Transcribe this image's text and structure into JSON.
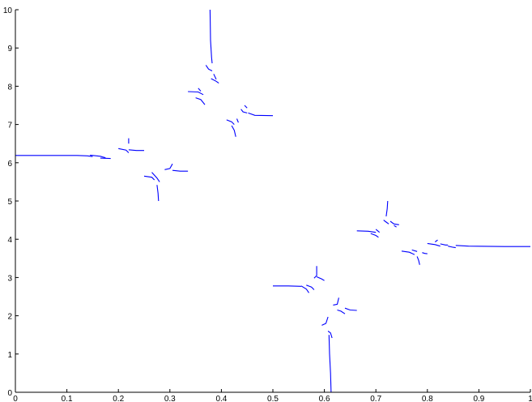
{
  "chart_data": {
    "type": "line",
    "title": "",
    "xlabel": "",
    "ylabel": "",
    "xlim": [
      0,
      1
    ],
    "ylim": [
      0,
      10
    ],
    "grid": false,
    "legend": "none",
    "series_color": "#0000ff",
    "x_ticks": [
      "0",
      "0.1",
      "0.2",
      "0.3",
      "0.4",
      "0.5",
      "0.6",
      "0.7",
      "0.8",
      "0.9",
      "1"
    ],
    "x_tick_values": [
      0,
      0.1,
      0.2,
      0.3,
      0.4,
      0.5,
      0.6,
      0.7,
      0.8,
      0.9,
      1
    ],
    "y_ticks": [
      "0",
      "1",
      "2",
      "3",
      "4",
      "5",
      "6",
      "7",
      "8",
      "9",
      "10"
    ],
    "y_tick_values": [
      0,
      1,
      2,
      3,
      4,
      5,
      6,
      7,
      8,
      9,
      10
    ],
    "series": [
      {
        "points": [
          [
            0.0,
            6.19
          ],
          [
            0.06,
            6.19
          ],
          [
            0.12,
            6.19
          ],
          [
            0.14,
            6.18
          ],
          [
            0.15,
            6.16
          ]
        ]
      },
      {
        "points": [
          [
            0.145,
            6.2
          ],
          [
            0.165,
            6.17
          ],
          [
            0.175,
            6.13
          ]
        ]
      },
      {
        "points": [
          [
            0.165,
            6.12
          ],
          [
            0.185,
            6.11
          ]
        ]
      },
      {
        "points": [
          [
            0.2,
            6.37
          ],
          [
            0.215,
            6.33
          ],
          [
            0.22,
            6.26
          ]
        ]
      },
      {
        "points": [
          [
            0.22,
            6.34
          ],
          [
            0.235,
            6.32
          ],
          [
            0.25,
            6.32
          ]
        ]
      },
      {
        "points": [
          [
            0.22,
            6.5
          ],
          [
            0.22,
            6.64
          ]
        ]
      },
      {
        "points": [
          [
            0.25,
            5.65
          ],
          [
            0.265,
            5.62
          ],
          [
            0.27,
            5.55
          ]
        ]
      },
      {
        "points": [
          [
            0.265,
            5.75
          ],
          [
            0.275,
            5.6
          ],
          [
            0.28,
            5.5
          ]
        ]
      },
      {
        "points": [
          [
            0.275,
            5.42
          ],
          [
            0.277,
            5.2
          ],
          [
            0.278,
            5.0
          ]
        ]
      },
      {
        "points": [
          [
            0.29,
            5.82
          ],
          [
            0.3,
            5.85
          ],
          [
            0.305,
            5.97
          ]
        ]
      },
      {
        "points": [
          [
            0.305,
            5.8
          ],
          [
            0.32,
            5.78
          ],
          [
            0.335,
            5.78
          ]
        ]
      },
      {
        "points": [
          [
            0.335,
            7.86
          ],
          [
            0.355,
            7.85
          ],
          [
            0.365,
            7.78
          ]
        ]
      },
      {
        "points": [
          [
            0.35,
            7.7
          ],
          [
            0.36,
            7.65
          ],
          [
            0.368,
            7.52
          ]
        ]
      },
      {
        "points": [
          [
            0.355,
            7.95
          ],
          [
            0.36,
            7.87
          ]
        ]
      },
      {
        "points": [
          [
            0.37,
            8.55
          ],
          [
            0.375,
            8.45
          ],
          [
            0.382,
            8.4
          ]
        ]
      },
      {
        "points": [
          [
            0.378,
            10.0
          ],
          [
            0.379,
            9.2
          ],
          [
            0.381,
            8.75
          ],
          [
            0.382,
            8.6
          ]
        ]
      },
      {
        "points": [
          [
            0.38,
            8.2
          ],
          [
            0.39,
            8.13
          ],
          [
            0.395,
            8.08
          ]
        ]
      },
      {
        "points": [
          [
            0.385,
            8.32
          ],
          [
            0.39,
            8.18
          ]
        ]
      },
      {
        "points": [
          [
            0.41,
            7.12
          ],
          [
            0.42,
            7.07
          ],
          [
            0.425,
            7.0
          ]
        ]
      },
      {
        "points": [
          [
            0.42,
            6.97
          ],
          [
            0.425,
            6.85
          ],
          [
            0.428,
            6.68
          ]
        ]
      },
      {
        "points": [
          [
            0.43,
            7.15
          ],
          [
            0.433,
            7.05
          ]
        ]
      },
      {
        "points": [
          [
            0.438,
            7.4
          ],
          [
            0.442,
            7.33
          ],
          [
            0.45,
            7.3
          ]
        ]
      },
      {
        "points": [
          [
            0.445,
            7.5
          ],
          [
            0.45,
            7.43
          ]
        ]
      },
      {
        "points": [
          [
            0.452,
            7.3
          ],
          [
            0.465,
            7.24
          ],
          [
            0.5,
            7.23
          ]
        ]
      },
      {
        "points": [
          [
            0.5,
            2.78
          ],
          [
            0.53,
            2.78
          ],
          [
            0.555,
            2.77
          ]
        ]
      },
      {
        "points": [
          [
            0.555,
            2.78
          ],
          [
            0.565,
            2.7
          ],
          [
            0.57,
            2.6
          ]
        ]
      },
      {
        "points": [
          [
            0.565,
            2.8
          ],
          [
            0.575,
            2.75
          ],
          [
            0.58,
            2.68
          ]
        ]
      },
      {
        "points": [
          [
            0.58,
            2.98
          ],
          [
            0.585,
            3.05
          ],
          [
            0.585,
            3.3
          ]
        ]
      },
      {
        "points": [
          [
            0.585,
            3.02
          ],
          [
            0.595,
            2.96
          ],
          [
            0.6,
            2.92
          ]
        ]
      },
      {
        "points": [
          [
            0.595,
            1.75
          ],
          [
            0.603,
            1.8
          ],
          [
            0.607,
            1.97
          ]
        ]
      },
      {
        "points": [
          [
            0.607,
            1.6
          ],
          [
            0.612,
            1.55
          ],
          [
            0.615,
            1.42
          ]
        ]
      },
      {
        "points": [
          [
            0.609,
            1.5
          ],
          [
            0.61,
            1.0
          ],
          [
            0.612,
            0.5
          ],
          [
            0.613,
            0.0
          ]
        ]
      },
      {
        "points": [
          [
            0.617,
            2.28
          ],
          [
            0.625,
            2.3
          ],
          [
            0.628,
            2.47
          ]
        ]
      },
      {
        "points": [
          [
            0.625,
            2.15
          ],
          [
            0.632,
            2.12
          ],
          [
            0.64,
            2.05
          ]
        ]
      },
      {
        "points": [
          [
            0.64,
            2.2
          ],
          [
            0.65,
            2.15
          ],
          [
            0.663,
            2.14
          ]
        ]
      },
      {
        "points": [
          [
            0.663,
            4.22
          ],
          [
            0.685,
            4.21
          ],
          [
            0.7,
            4.18
          ]
        ]
      },
      {
        "points": [
          [
            0.69,
            4.15
          ],
          [
            0.7,
            4.1
          ],
          [
            0.705,
            4.05
          ]
        ]
      },
      {
        "points": [
          [
            0.7,
            4.26
          ],
          [
            0.707,
            4.18
          ]
        ]
      },
      {
        "points": [
          [
            0.715,
            4.5
          ],
          [
            0.72,
            4.45
          ],
          [
            0.725,
            4.4
          ]
        ]
      },
      {
        "points": [
          [
            0.72,
            4.6
          ],
          [
            0.722,
            4.8
          ],
          [
            0.723,
            5.0
          ]
        ]
      },
      {
        "points": [
          [
            0.728,
            4.47
          ],
          [
            0.735,
            4.4
          ],
          [
            0.745,
            4.38
          ]
        ]
      },
      {
        "points": [
          [
            0.735,
            4.36
          ],
          [
            0.74,
            4.32
          ]
        ]
      },
      {
        "points": [
          [
            0.75,
            3.69
          ],
          [
            0.765,
            3.66
          ],
          [
            0.775,
            3.6
          ]
        ]
      },
      {
        "points": [
          [
            0.77,
            3.72
          ],
          [
            0.78,
            3.68
          ]
        ]
      },
      {
        "points": [
          [
            0.78,
            3.55
          ],
          [
            0.783,
            3.45
          ],
          [
            0.785,
            3.33
          ]
        ]
      },
      {
        "points": [
          [
            0.79,
            3.65
          ],
          [
            0.795,
            3.63
          ],
          [
            0.8,
            3.62
          ]
        ]
      },
      {
        "points": [
          [
            0.8,
            3.89
          ],
          [
            0.815,
            3.86
          ],
          [
            0.825,
            3.82
          ]
        ]
      },
      {
        "points": [
          [
            0.815,
            3.93
          ],
          [
            0.82,
            3.98
          ]
        ]
      },
      {
        "points": [
          [
            0.825,
            3.88
          ],
          [
            0.835,
            3.85
          ],
          [
            0.84,
            3.85
          ]
        ]
      },
      {
        "points": [
          [
            0.84,
            3.82
          ],
          [
            0.85,
            3.79
          ],
          [
            0.855,
            3.78
          ]
        ]
      },
      {
        "points": [
          [
            0.855,
            3.84
          ],
          [
            0.88,
            3.82
          ],
          [
            0.95,
            3.81
          ],
          [
            1.0,
            3.81
          ]
        ]
      }
    ]
  }
}
